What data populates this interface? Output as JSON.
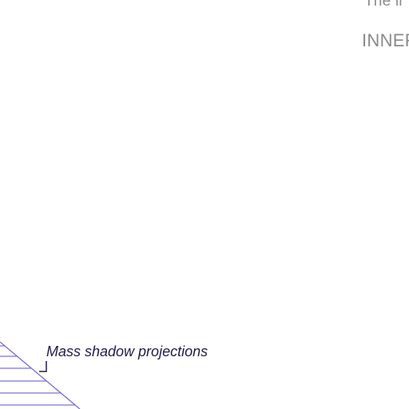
{
  "heading_partial": "The ir",
  "subheading_partial": "INNER",
  "annotation": {
    "label": "Mass shadow projections"
  },
  "colors": {
    "text_gray": "#8a8a8a",
    "annotation_text": "#1f1b4d",
    "hatch_line": "#7b73d6",
    "leader_line": "#1f1b4d"
  },
  "icons": [
    "hatched-shadow-diagram",
    "leader-line"
  ]
}
